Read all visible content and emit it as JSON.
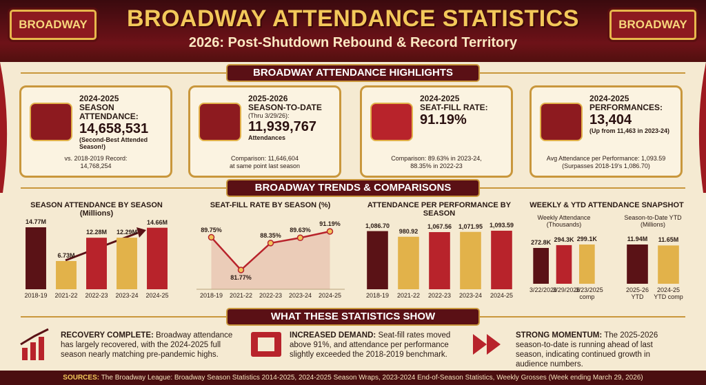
{
  "header": {
    "sign_left": "BROADWAY",
    "sign_right": "BROADWAY",
    "title": "BROADWAY ATTENDANCE STATISTICS",
    "subtitle": "2026: Post-Shutdown Rebound & Record Territory"
  },
  "highlights": {
    "heading": "BROADWAY ATTENDANCE HIGHLIGHTS",
    "cards": [
      {
        "kicker": "2024-2025",
        "label": "SEASON ATTENDANCE:",
        "figure": "14,658,531",
        "note": "(Second-Best Attended Season!)",
        "footer": [
          "vs. 2018-2019 Record:",
          "14,768,254"
        ]
      },
      {
        "kicker": "2025-2026",
        "label": "SEASON-TO-DATE",
        "note_top": "(Thru 3/29/26):",
        "figure": "11,939,767",
        "note": "Attendances",
        "footer": [
          "Comparison: 11,646,604",
          "at same point last season"
        ]
      },
      {
        "kicker": "2024-2025",
        "label": "SEAT-FILL RATE:",
        "figure": "91.19%",
        "footer": [
          "Comparison: 89.63% in 2023-24,",
          "88.35% in 2022-23"
        ]
      },
      {
        "kicker": "2024-2025",
        "label": "PERFORMANCES:",
        "figure": "13,404",
        "note": "(Up from 11,463 in 2023-24)",
        "footer": [
          "Avg Attendance per Performance: 1,093.59",
          "(Surpasses 2018-19's 1,086.70)"
        ]
      }
    ]
  },
  "trends": {
    "heading": "BROADWAY TRENDS & COMPARISONS"
  },
  "chart_data": [
    {
      "type": "bar",
      "title": "SEASON ATTENDANCE BY SEASON (Millions)",
      "categories": [
        "2018-19",
        "2021-22",
        "2022-23",
        "2023-24",
        "2024-25"
      ],
      "values": [
        14.77,
        6.73,
        12.28,
        12.29,
        14.66
      ],
      "value_labels": [
        "14.77M",
        "6.73M",
        "12.28M",
        "12.29M",
        "14.66M"
      ],
      "colors": [
        "#5a1216",
        "#e2b24a",
        "#b8232b",
        "#e2b24a",
        "#b8232b"
      ]
    },
    {
      "type": "line",
      "title": "SEAT-FILL RATE BY SEASON (%)",
      "categories": [
        "2018-19",
        "2021-22",
        "2022-23",
        "2023-24",
        "2024-25"
      ],
      "values": [
        89.75,
        81.77,
        88.35,
        89.63,
        91.19
      ],
      "value_labels": [
        "89.75%",
        "81.77%",
        "88.35%",
        "89.63%",
        "91.19%"
      ],
      "color": "#b8232b"
    },
    {
      "type": "bar",
      "title": "ATTENDANCE PER PERFORMANCE BY SEASON",
      "categories": [
        "2018-19",
        "2021-22",
        "2022-23",
        "2023-24",
        "2024-25"
      ],
      "values": [
        1086.7,
        980.92,
        1067.56,
        1071.95,
        1093.59
      ],
      "value_labels": [
        "1,086.70",
        "980.92",
        "1,067.56",
        "1,071.95",
        "1,093.59"
      ],
      "colors": [
        "#5a1216",
        "#e2b24a",
        "#b8232b",
        "#e2b24a",
        "#b8232b"
      ]
    },
    {
      "type": "bar",
      "title": "WEEKLY & YTD ATTENDANCE SNAPSHOT",
      "subtitle": "Weekly Attendance (Thousands)",
      "categories": [
        "3/22/2026",
        "3/29/2026",
        "3/23/2025 comp"
      ],
      "values": [
        272.8,
        294.3,
        299.1
      ],
      "value_labels": [
        "272.8K",
        "294.3K",
        "299.1K"
      ],
      "colors": [
        "#5a1216",
        "#b8232b",
        "#e2b24a"
      ]
    },
    {
      "type": "bar",
      "subtitle": "Season-to-Date YTD (Millions)",
      "categories": [
        "2025-26 YTD",
        "2024-25 YTD comp"
      ],
      "values": [
        11.94,
        11.65
      ],
      "value_labels": [
        "11.94M",
        "11.65M"
      ],
      "colors": [
        "#5a1216",
        "#e2b24a"
      ]
    }
  ],
  "findings": {
    "heading": "WHAT THESE STATISTICS SHOW",
    "items": [
      {
        "lead": "RECOVERY COMPLETE:",
        "text": "Broadway attendance has largely recovered, with the 2024-2025 full season nearly matching pre-pandemic highs."
      },
      {
        "lead": "INCREASED DEMAND:",
        "text": "Seat-fill rates moved above 91%, and attendance per performance slightly exceeded the 2018-2019 benchmark."
      },
      {
        "lead": "STRONG MOMENTUM:",
        "text": "The 2025-2026 season-to-date is running ahead of last season, indicating continued growth in audience numbers."
      }
    ]
  },
  "sources": {
    "label": "SOURCES:",
    "text": "The Broadway League: Broadway Season Statistics 2014-2025, 2024-2025 Season Wraps, 2023-2024 End-of-Season Statistics, Weekly Grosses (Week ending March 29, 2026)"
  }
}
